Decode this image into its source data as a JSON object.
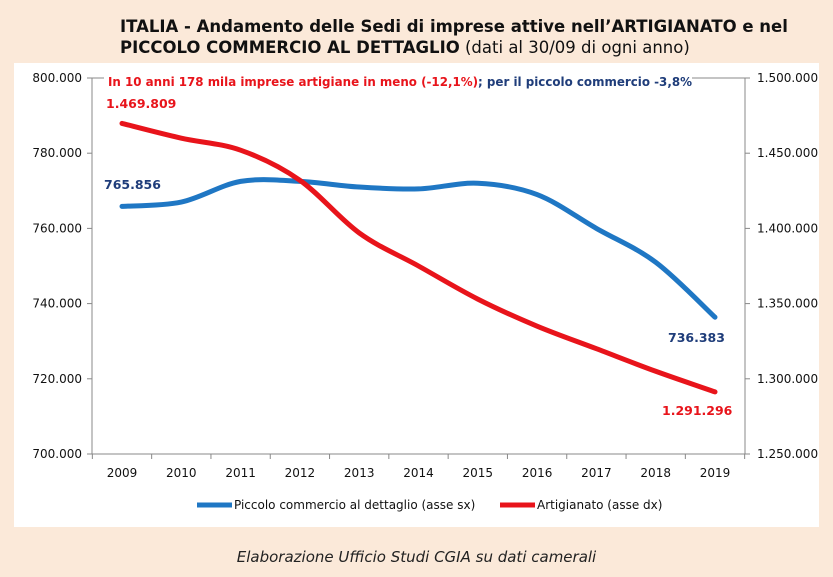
{
  "title": {
    "line1": "ITALIA - Andamento delle Sedi di imprese attive nell’ARTIGIANATO e nel",
    "line2_bold": "PICCOLO COMMERCIO AL DETTAGLIO",
    "line2_normal": " (dati al 30/09 di ogni anno)"
  },
  "annotation": {
    "red_text": "In 10 anni 178 mila imprese artigiane in meno (-12,1%)",
    "blue_text": "; per il piccolo commercio -3,8%"
  },
  "source": "Elaborazione Ufficio Studi CGIA su dati camerali",
  "colors": {
    "blue": "#1f77c4",
    "red": "#e8141b",
    "background": "#fbe9d9",
    "label_blue": "#1f3d7a"
  },
  "chart_data": {
    "type": "line",
    "x": [
      "2009",
      "2010",
      "2011",
      "2012",
      "2013",
      "2014",
      "2015",
      "2016",
      "2017",
      "2018",
      "2019"
    ],
    "y_left": {
      "ylim": [
        700000,
        800000
      ],
      "ticks": [
        "700.000",
        "720.000",
        "740.000",
        "760.000",
        "780.000",
        "800.000"
      ]
    },
    "y_right": {
      "ylim": [
        1250000,
        1500000
      ],
      "ticks": [
        "1.250.000",
        "1.300.000",
        "1.350.000",
        "1.400.000",
        "1.450.000",
        "1.500.000"
      ]
    },
    "series": [
      {
        "name": "Piccolo commercio al dettaglio (asse sx)",
        "axis": "left",
        "color": "#1f77c4",
        "values": [
          765856,
          767000,
          772500,
          772500,
          771000,
          770500,
          772000,
          769000,
          760000,
          751000,
          736383
        ],
        "labels": {
          "first": "765.856",
          "last": "736.383"
        }
      },
      {
        "name": "Artigianato (asse dx)",
        "axis": "right",
        "color": "#e8141b",
        "values": [
          1469809,
          1460000,
          1452000,
          1432000,
          1397000,
          1375000,
          1353000,
          1335000,
          1320000,
          1305000,
          1291296
        ],
        "labels": {
          "first": "1.469.809",
          "last": "1.291.296"
        }
      }
    ],
    "legend": "bottom",
    "grid": false
  }
}
